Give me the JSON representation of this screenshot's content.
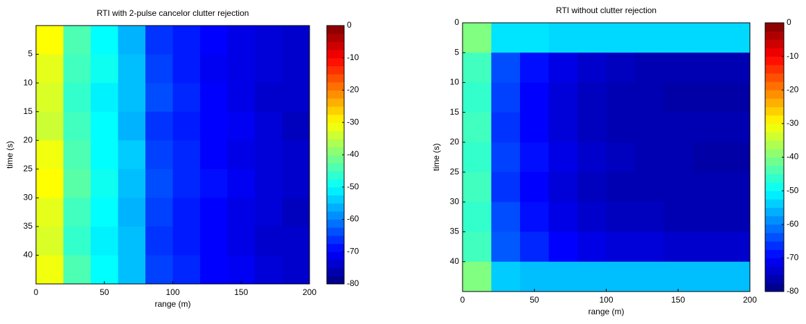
{
  "chart_data": [
    {
      "type": "heatmap",
      "title": "RTI with 2-pulse cancelor clutter rejection",
      "x_label": "range (m)",
      "y_label": "time (s)",
      "x": [
        10,
        30,
        50,
        70,
        90,
        110,
        130,
        150,
        170,
        190
      ],
      "y": [
        2.5,
        7.5,
        12.5,
        17.5,
        22.5,
        27.5,
        32.5,
        37.5,
        42.5
      ],
      "z": [
        [
          -30,
          -44,
          -50,
          -56,
          -66,
          -68,
          -70,
          -72,
          -73,
          -74
        ],
        [
          -32,
          -45,
          -49,
          -55,
          -65,
          -68,
          -71,
          -72,
          -73,
          -74
        ],
        [
          -33,
          -46,
          -51,
          -55,
          -64,
          -67,
          -70,
          -72,
          -74,
          -74
        ],
        [
          -34,
          -45,
          -50,
          -56,
          -66,
          -68,
          -70,
          -71,
          -73,
          -75
        ],
        [
          -31,
          -44,
          -50,
          -54,
          -65,
          -67,
          -70,
          -72,
          -73,
          -74
        ],
        [
          -30,
          -43,
          -49,
          -55,
          -64,
          -67,
          -69,
          -71,
          -73,
          -74
        ],
        [
          -32,
          -45,
          -50,
          -56,
          -65,
          -68,
          -70,
          -72,
          -73,
          -75
        ],
        [
          -33,
          -46,
          -51,
          -55,
          -66,
          -68,
          -70,
          -72,
          -74,
          -74
        ],
        [
          -31,
          -44,
          -50,
          -55,
          -65,
          -67,
          -70,
          -71,
          -73,
          -74
        ]
      ],
      "xlim": [
        0,
        200
      ],
      "xticks": [
        0,
        50,
        100,
        150,
        200
      ],
      "ylim": [
        0,
        45
      ],
      "yticks": [
        5,
        10,
        15,
        20,
        25,
        30,
        35,
        40
      ],
      "y_reversed": true,
      "colormap": "jet",
      "clim": [
        -80,
        0
      ],
      "cticks": [
        0,
        -10,
        -20,
        -30,
        -40,
        -50,
        -60,
        -70,
        -80
      ]
    },
    {
      "type": "heatmap",
      "title": "RTI without clutter rejection",
      "x_label": "range (m)",
      "y_label": "time (s)",
      "x": [
        10,
        30,
        50,
        70,
        90,
        110,
        130,
        150,
        170,
        190
      ],
      "y": [
        2.5,
        7.5,
        12.5,
        17.5,
        22.5,
        27.5,
        32.5,
        37.5,
        42.5
      ],
      "z": [
        [
          -40,
          -52,
          -52,
          -53,
          -53,
          -53,
          -53,
          -53,
          -53,
          -53
        ],
        [
          -45,
          -64,
          -69,
          -72,
          -74,
          -75,
          -76,
          -76,
          -76,
          -76
        ],
        [
          -46,
          -65,
          -70,
          -73,
          -75,
          -76,
          -76,
          -77,
          -77,
          -77
        ],
        [
          -45,
          -66,
          -70,
          -73,
          -75,
          -76,
          -76,
          -76,
          -76,
          -76
        ],
        [
          -46,
          -65,
          -69,
          -72,
          -74,
          -75,
          -76,
          -76,
          -77,
          -77
        ],
        [
          -45,
          -66,
          -70,
          -73,
          -75,
          -76,
          -76,
          -76,
          -76,
          -76
        ],
        [
          -46,
          -64,
          -69,
          -72,
          -74,
          -75,
          -75,
          -76,
          -76,
          -76
        ],
        [
          -45,
          -63,
          -67,
          -70,
          -72,
          -73,
          -73,
          -74,
          -74,
          -74
        ],
        [
          -40,
          -54,
          -55,
          -55,
          -55,
          -55,
          -55,
          -55,
          -55,
          -55
        ]
      ],
      "xlim": [
        0,
        200
      ],
      "xticks": [
        0,
        50,
        100,
        150,
        200
      ],
      "ylim": [
        0,
        45
      ],
      "yticks": [
        0,
        5,
        10,
        15,
        20,
        25,
        30,
        35,
        40
      ],
      "y_reversed": true,
      "colormap": "jet",
      "clim": [
        -80,
        0
      ],
      "cticks": [
        0,
        -10,
        -20,
        -30,
        -40,
        -50,
        -60,
        -70,
        -80
      ]
    }
  ]
}
